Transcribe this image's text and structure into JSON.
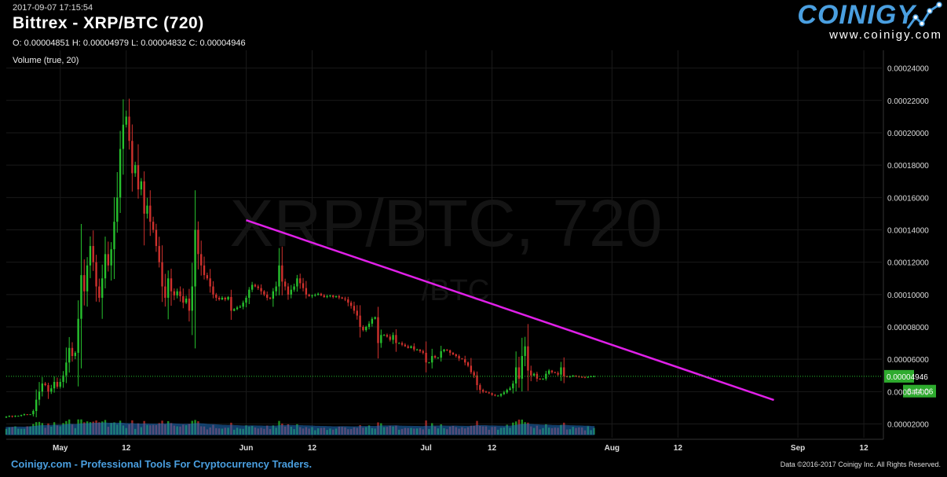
{
  "header": {
    "timestamp": "2017-09-07 17:15:54",
    "title": "Bittrex - XRP/BTC (720)",
    "ohlc": "O: 0.00004851 H: 0.00004979 L: 0.00004832 C: 0.00004946",
    "volume_label": "Volume (true, 20)"
  },
  "logo": {
    "brand": "COINIGY",
    "url": "www.coinigy.com",
    "icon": "rising-line-logo-icon"
  },
  "footer": {
    "left": "Coinigy.com - Professional Tools For Cryptocurrency Traders.",
    "right": "Data ©2016-2017 Coinigy Inc. All Rights Reserved."
  },
  "colors": {
    "background": "#000000",
    "up": "#27c22e",
    "down": "#d0312d",
    "trendline": "#e020e8",
    "volume_ma": "#1f6fc0",
    "grid": "#1a1a1a",
    "price_tag": "#2eab2e",
    "brand": "#4a9fe0"
  },
  "chart_data": {
    "type": "candlestick",
    "watermark": "XRP/BTC, 720",
    "watermark_sub": "/BTC",
    "x_ticks": [
      {
        "label": "May",
        "date": "2017-05-01"
      },
      {
        "label": "12",
        "date": "2017-05-12"
      },
      {
        "label": "Jun",
        "date": "2017-06-01"
      },
      {
        "label": "12",
        "date": "2017-06-12"
      },
      {
        "label": "Jul",
        "date": "2017-07-01"
      },
      {
        "label": "12",
        "date": "2017-07-12"
      },
      {
        "label": "Aug",
        "date": "2017-08-01"
      },
      {
        "label": "12",
        "date": "2017-08-12"
      },
      {
        "label": "Sep",
        "date": "2017-09-01"
      },
      {
        "label": "12",
        "date": "2017-09-12"
      }
    ],
    "y_ticks": [
      "0.00002000",
      "0.00004000",
      "0.00006000",
      "0.00008000",
      "0.00010000",
      "0.00012000",
      "0.00014000",
      "0.00016000",
      "0.00018000",
      "0.00020000",
      "0.00022000",
      "0.00024000"
    ],
    "ylim": [
      1.15e-05,
      0.000251
    ],
    "xlim": [
      "2017-04-22",
      "2017-09-15"
    ],
    "current_price": {
      "value": 4.946e-05,
      "label": "0.00004946"
    },
    "countdown": {
      "label": "6:44:06",
      "value": 4.03e-05
    },
    "trendline": {
      "from": {
        "date": "2017-06-01",
        "value": 0.000146
      },
      "to": {
        "date": "2017-08-28",
        "value": 3.48e-05
      }
    },
    "candle_period": "12h",
    "closes": {
      "start": "2017-04-22",
      "values": [
        2.45e-05,
        2.5e-05,
        2.45e-05,
        2.5e-05,
        2.5e-05,
        2.55e-05,
        2.6e-05,
        2.58e-05,
        2.6e-05,
        2.8e-05,
        3.5e-05,
        4e-05,
        4.5e-05,
        4.4e-05,
        4e-05,
        4.2e-05,
        4.6e-05,
        4.3e-05,
        4.6e-05,
        5e-05,
        5.8e-05,
        6.7e-05,
        6.2e-05,
        6.4e-05,
        8.5e-05,
        0.000112,
        0.000102,
        0.000118,
        0.00013,
        0.00012,
        0.000105,
        9.8e-05,
        0.00011,
        0.000125,
        0.000118,
        0.000128,
        0.000145,
        0.00016,
        0.00019,
        0.000205,
        0.00021,
        0.000195,
        0.000175,
        0.00018,
        0.000165,
        0.00017,
        0.00015,
        0.000155,
        0.000145,
        0.00014,
        0.00013,
        0.00012,
        0.000105,
        9.8e-05,
        0.00011,
        0.000102,
        9.95e-05,
        0.000102,
        9.9e-05,
        9.5e-05,
        9.75e-05,
        9e-05,
        0.000105,
        0.00014,
        0.000125,
        0.000118,
        0.000112,
        0.00011,
        0.000105,
        0.0001,
        9.8e-05,
        9.7e-05,
        9.8e-05,
        9.7e-05,
        9.85e-05,
        9e-05,
        9.1e-05,
        9.2e-05,
        9.25e-05,
        9.5e-05,
        9.8e-05,
        0.000103,
        0.000106,
        0.000105,
        0.000104,
        0.000102,
        0.0001,
        9.8e-05,
        9.75e-05,
        0.000102,
        0.000105,
        0.000118,
        0.000108,
        0.000105,
        0.0001,
        0.000103,
        0.000105,
        0.00011,
        0.000107,
        0.000104,
        0.0001,
        9.9e-05,
        9.95e-05,
        9.98e-05,
        0.0001005,
        9.95e-05,
        9.85e-05,
        9.9e-05,
        9.95e-05,
        9.85e-05,
        9.9e-05,
        9.82e-05,
        9.75e-05,
        9.7e-05,
        9.5e-05,
        9.3e-05,
        9e-05,
        8.7e-05,
        8e-05,
        7.8e-05,
        8e-05,
        8.2e-05,
        8.5e-05,
        8.6e-05,
        7e-05,
        7.5e-05,
        7.5e-05,
        7.4e-05,
        7.2e-05,
        7.5e-05,
        7e-05,
        7e-05,
        6.9e-05,
        6.8e-05,
        6.7e-05,
        6.8e-05,
        6.6e-05,
        6.6e-05,
        6.5e-05,
        6.4e-05,
        5.8e-05,
        5.8e-05,
        6.2e-05,
        6.1e-05,
        6.1e-05,
        6.5e-05,
        6.6e-05,
        6.55e-05,
        6.4e-05,
        6.3e-05,
        6.2e-05,
        6.05e-05,
        6e-05,
        5.8e-05,
        5.6e-05,
        5.2e-05,
        5e-05,
        4.4e-05,
        4.1e-05,
        4e-05,
        3.95e-05,
        3.9e-05,
        3.8e-05,
        3.75e-05,
        3.75e-05,
        3.85e-05,
        3.95e-05,
        4.1e-05,
        4.2e-05,
        4.5e-05,
        5.5e-05,
        4.8e-05,
        6.2e-05,
        6.8e-05,
        5.3e-05,
        5e-05,
        5.1e-05,
        4.8e-05,
        4.75e-05,
        4.8e-05,
        5.1e-05,
        5.3e-05,
        5.2e-05,
        5.15e-05,
        5.05e-05,
        5.5e-05,
        4.95e-05,
        4.9e-05,
        4.95e-05,
        4.98e-05,
        4.95e-05,
        4.92e-05,
        4.9e-05,
        4.88e-05,
        4.92e-05,
        4.94e-05,
        4.946e-05
      ]
    }
  }
}
